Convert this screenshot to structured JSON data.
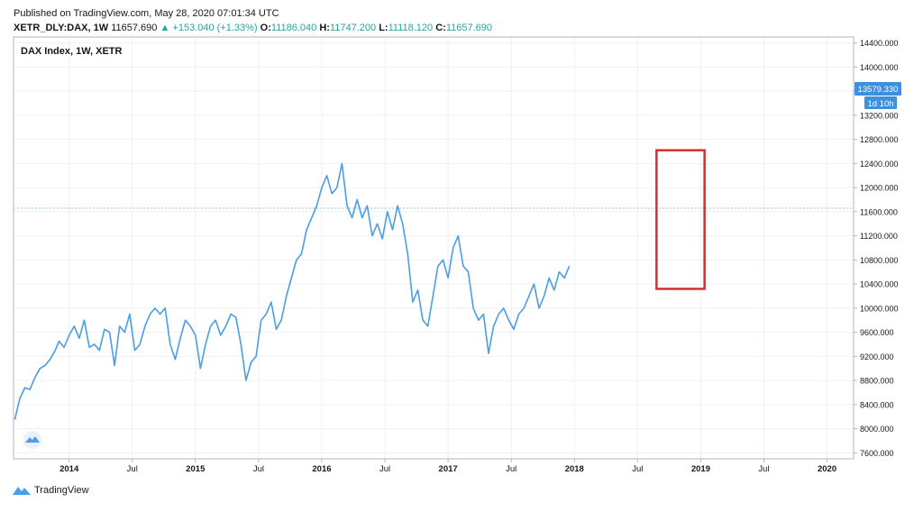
{
  "header": {
    "published": "Published on TradingView.com, May 28, 2020 07:01:34 UTC",
    "symbol": "XETR_DLY:DAX, 1W",
    "last": "11657.690",
    "change_arrow": "▲",
    "change": "+153.040 (+1.33%)",
    "o_label": "O:",
    "o_value": "11186.040",
    "h_label": "H:",
    "h_value": "11747.200",
    "l_label": "L:",
    "l_value": "11118.120",
    "c_label": "C:",
    "c_value": "11657.690"
  },
  "chart_title": "DAX Index, 1W, XETR",
  "price_badge": "13579.330",
  "countdown_badge": "1d 10h",
  "footer_brand": "TradingView",
  "colors": {
    "line": "#4a9ee8",
    "badge": "#3d8fe0",
    "highlight": "#d32f2f",
    "grid": "#eef0f3",
    "hline": "#9cc3ee"
  },
  "chart_data": {
    "type": "line",
    "title": "DAX Index, 1W, XETR",
    "ylim": [
      7500,
      14500
    ],
    "xlim": [
      2013.56,
      2020.21
    ],
    "y_ticks": [
      "14400.000",
      "14000.000",
      "13600.000",
      "13200.000",
      "12800.000",
      "12400.000",
      "12000.000",
      "11600.000",
      "11200.000",
      "10800.000",
      "10400.000",
      "10000.000",
      "9600.000",
      "9200.000",
      "8800.000",
      "8400.000",
      "8000.000",
      "7600.000"
    ],
    "x_ticks": [
      {
        "label": "2014",
        "x": 2014.0
      },
      {
        "label": "Jul",
        "x": 2014.5
      },
      {
        "label": "2015",
        "x": 2015.0
      },
      {
        "label": "Jul",
        "x": 2015.5
      },
      {
        "label": "2016",
        "x": 2016.0
      },
      {
        "label": "Jul",
        "x": 2016.5
      },
      {
        "label": "2017",
        "x": 2017.0
      },
      {
        "label": "Jul",
        "x": 2017.5
      },
      {
        "label": "2018",
        "x": 2018.0
      },
      {
        "label": "Jul",
        "x": 2018.5
      },
      {
        "label": "2019",
        "x": 2019.0
      },
      {
        "label": "Jul",
        "x": 2019.5
      },
      {
        "label": "2020",
        "x": 2020.0
      }
    ],
    "current_value": 11657.69,
    "highlight_box": {
      "x0": 2018.65,
      "x1": 2019.03,
      "y0": 10320,
      "y1": 12620
    },
    "series": [
      {
        "points": [
          [
            2013.57,
            8150
          ],
          [
            2013.61,
            8500
          ],
          [
            2013.65,
            8680
          ],
          [
            2013.69,
            8650
          ],
          [
            2013.73,
            8850
          ],
          [
            2013.77,
            9000
          ],
          [
            2013.81,
            9050
          ],
          [
            2013.85,
            9150
          ],
          [
            2013.89,
            9300
          ],
          [
            2013.92,
            9450
          ],
          [
            2013.96,
            9350
          ],
          [
            2014.0,
            9550
          ],
          [
            2014.04,
            9700
          ],
          [
            2014.08,
            9500
          ],
          [
            2014.12,
            9800
          ],
          [
            2014.16,
            9350
          ],
          [
            2014.2,
            9400
          ],
          [
            2014.24,
            9300
          ],
          [
            2014.28,
            9650
          ],
          [
            2014.32,
            9600
          ],
          [
            2014.36,
            9050
          ],
          [
            2014.4,
            9700
          ],
          [
            2014.44,
            9600
          ],
          [
            2014.48,
            9900
          ],
          [
            2014.52,
            9300
          ],
          [
            2014.56,
            9400
          ],
          [
            2014.6,
            9700
          ],
          [
            2014.64,
            9900
          ],
          [
            2014.68,
            10000
          ],
          [
            2014.72,
            9900
          ],
          [
            2014.76,
            10000
          ],
          [
            2014.8,
            9400
          ],
          [
            2014.84,
            9150
          ],
          [
            2014.88,
            9500
          ],
          [
            2014.92,
            9800
          ],
          [
            2014.96,
            9700
          ],
          [
            2015.0,
            9550
          ],
          [
            2015.04,
            9000
          ],
          [
            2015.08,
            9400
          ],
          [
            2015.12,
            9700
          ],
          [
            2015.16,
            9800
          ],
          [
            2015.2,
            9550
          ],
          [
            2015.24,
            9700
          ],
          [
            2015.28,
            9900
          ],
          [
            2015.32,
            9850
          ],
          [
            2015.36,
            9400
          ],
          [
            2015.4,
            8800
          ],
          [
            2015.44,
            9100
          ],
          [
            2015.48,
            9200
          ],
          [
            2015.52,
            9800
          ],
          [
            2015.56,
            9900
          ],
          [
            2015.6,
            10100
          ],
          [
            2015.64,
            9650
          ],
          [
            2015.68,
            9800
          ],
          [
            2015.72,
            10200
          ],
          [
            2015.76,
            10500
          ],
          [
            2015.8,
            10800
          ],
          [
            2015.84,
            10900
          ],
          [
            2015.88,
            11300
          ],
          [
            2015.92,
            11500
          ],
          [
            2015.96,
            11700
          ],
          [
            2016.0,
            12000
          ],
          [
            2016.04,
            12200
          ],
          [
            2016.08,
            11900
          ],
          [
            2016.12,
            12000
          ],
          [
            2016.16,
            12400
          ],
          [
            2016.2,
            11700
          ],
          [
            2016.24,
            11500
          ],
          [
            2016.28,
            11800
          ],
          [
            2016.32,
            11500
          ],
          [
            2016.36,
            11700
          ],
          [
            2016.4,
            11200
          ],
          [
            2016.44,
            11400
          ],
          [
            2016.48,
            11150
          ],
          [
            2016.52,
            11600
          ],
          [
            2016.56,
            11300
          ],
          [
            2016.6,
            11700
          ],
          [
            2016.64,
            11400
          ],
          [
            2016.68,
            10900
          ],
          [
            2016.72,
            10100
          ],
          [
            2016.76,
            10300
          ],
          [
            2016.8,
            9800
          ],
          [
            2016.84,
            9700
          ],
          [
            2016.88,
            10200
          ],
          [
            2016.92,
            10700
          ],
          [
            2016.96,
            10800
          ],
          [
            2017.0,
            10500
          ],
          [
            2017.04,
            11000
          ],
          [
            2017.08,
            11200
          ],
          [
            2017.12,
            10700
          ],
          [
            2017.16,
            10600
          ],
          [
            2017.2,
            10000
          ],
          [
            2017.24,
            9800
          ],
          [
            2017.28,
            9900
          ],
          [
            2017.32,
            9250
          ],
          [
            2017.36,
            9700
          ],
          [
            2017.4,
            9900
          ],
          [
            2017.44,
            10000
          ],
          [
            2017.48,
            9800
          ],
          [
            2017.52,
            9650
          ],
          [
            2017.56,
            9900
          ],
          [
            2017.6,
            10000
          ],
          [
            2017.64,
            10200
          ],
          [
            2017.68,
            10400
          ],
          [
            2017.72,
            10000
          ],
          [
            2017.76,
            10200
          ],
          [
            2017.8,
            10500
          ],
          [
            2017.84,
            10300
          ],
          [
            2017.88,
            10600
          ],
          [
            2017.92,
            10500
          ],
          [
            2017.96,
            10700
          ]
        ]
      }
    ]
  }
}
